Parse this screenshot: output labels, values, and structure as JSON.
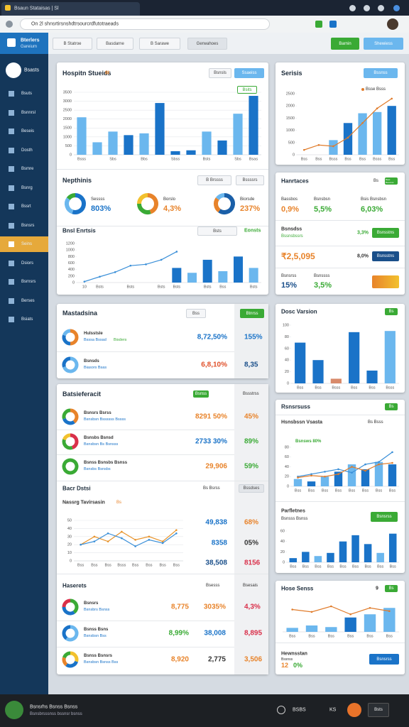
{
  "browser": {
    "tab": "Bsaun Stataisas | Sl",
    "url": "On 2l shnsrtirsnshdtrsourcrdfutotraeads"
  },
  "header": {
    "brand": "Bterlers",
    "brand_sub": "Gareium",
    "nav": [
      "B Statroe",
      "Basdarne",
      "B Sarawe",
      "Gerwahoes"
    ],
    "actions": [
      "Barnin",
      "Shewiess"
    ]
  },
  "sidebar": {
    "profile": "Bsasts",
    "items": [
      "Bsuts",
      "Bsnnrsl",
      "Beseis",
      "Dosth",
      "Bsmre",
      "Bsnrg",
      "Bssrt",
      "Bsnsrs",
      "Seins",
      "Dsiors",
      "Bsrnsrs",
      "Berses",
      "Bsiats"
    ],
    "active": 8
  },
  "hospital": {
    "title": "Hospitn Stueids",
    "badge": "8I",
    "tabs": [
      "Bsnsls",
      "Ssaeiss"
    ],
    "tag": "Bsits",
    "chart": {
      "type": "bar",
      "grid": true,
      "categories": [
        "Bsss",
        null,
        "Sbs",
        null,
        "Bbs",
        null,
        "Sbss",
        null,
        "Bsts",
        null,
        "Sbs",
        "Bsas"
      ],
      "ylim": [
        0,
        3500
      ],
      "yticks": [
        0,
        500,
        1000,
        1500,
        2000,
        2500,
        3000,
        3500
      ],
      "series": [
        {
          "type": "bar",
          "values": [
            2100,
            700,
            1300,
            1100,
            1200,
            2900,
            200,
            250,
            1300,
            800,
            2300,
            3300
          ],
          "colors": [
            "#6bb7ee",
            "#6bb7ee",
            "#6bb7ee",
            "#1a73c8",
            "#6bb7ee",
            "#1a73c8",
            "#1a73c8",
            "#1a73c8",
            "#6bb7ee",
            "#1a73c8",
            "#6bb7ee",
            "#1a73c8"
          ]
        }
      ]
    }
  },
  "nephrines": {
    "title": "Nepthinis",
    "tabs": [
      "B Brssss",
      "Bssssrs"
    ],
    "items": [
      {
        "label": "Sessss",
        "value": "803%",
        "color": "#1a73c8",
        "segments": [
          55,
          30,
          15
        ],
        "colors": [
          "#1a73c8",
          "#6bb7ee",
          "#3aaa35"
        ]
      },
      {
        "label": "Borslo",
        "value": "4,3%",
        "color": "#e8832a",
        "segments": [
          45,
          30,
          25
        ],
        "colors": [
          "#e8832a",
          "#3aaa35",
          "#f2c12e"
        ]
      },
      {
        "label": "Biorsde",
        "value": "237%",
        "color": "#e8832a",
        "segments": [
          60,
          25,
          15
        ],
        "colors": [
          "#1a5fa8",
          "#e8832a",
          "#6bb7ee"
        ]
      }
    ]
  },
  "trends": {
    "title": "Bnsl Enrtsis",
    "tabs": [
      "Bsts",
      "Eonsts"
    ],
    "chart": {
      "type": "bar",
      "grid": false,
      "categories": [
        "10",
        "Bsts",
        null,
        "Bsts",
        null,
        "Bsts",
        "Bsts",
        null,
        "Bsts",
        "Bss",
        null,
        "Bsts"
      ],
      "ylim": [
        0,
        1200
      ],
      "yticks": [
        0,
        200,
        400,
        600,
        800,
        1000,
        1200
      ],
      "series": [
        {
          "type": "line",
          "color": "#3a8fd8",
          "values": [
            30,
            180,
            320,
            520,
            560,
            700,
            950,
            null,
            null,
            null,
            null,
            null
          ]
        },
        {
          "type": "bar",
          "values": [
            null,
            null,
            null,
            null,
            null,
            null,
            450,
            300,
            700,
            350,
            800,
            450
          ],
          "colors": [
            "#1a73c8",
            "#1a73c8",
            "#1a73c8",
            "#1a73c8",
            "#1a73c8",
            "#1a73c8",
            "#1a73c8",
            "#6bb7ee",
            "#1a73c8",
            "#6bb7ee",
            "#1a73c8",
            "#6bb7ee"
          ]
        }
      ]
    }
  },
  "master": {
    "title": "Mastadsina",
    "tabs": [
      "Bss",
      "Btnrss"
    ],
    "rows": [
      {
        "name": "Hulsstsle",
        "sub": "Bsssa Bssad",
        "tag": "Bisders",
        "value": "8,72,50%",
        "pct": "155%",
        "text_colors": [
          "#1a73c8",
          "#1a73c8"
        ],
        "segments": [
          50,
          30,
          20
        ],
        "colors": [
          "#e8832a",
          "#1a73c8",
          "#6bb7ee"
        ]
      },
      {
        "name": "Bsnsds",
        "sub": "Biasors Bsas",
        "value": "6,8,10%",
        "pct": "8,35",
        "text_colors": [
          "#e0502a",
          "#1a4f8a"
        ],
        "segments": [
          70,
          30
        ],
        "colors": [
          "#6bb7ee",
          "#1a73c8"
        ]
      }
    ]
  },
  "bursts": {
    "title": "Batsieferacit",
    "tabs": [
      "Bsnss",
      "Bssstrss"
    ],
    "rows": [
      {
        "name": "Bsnsrs Bsrss",
        "sub": "Bsnsbsn Bssssss Bssss",
        "value": "8291 50%",
        "pct": "45%",
        "text_colors": [
          "#e8832a",
          "#e8832a"
        ],
        "segments": [
          40,
          30,
          30
        ],
        "colors": [
          "#e8832a",
          "#1a73c8",
          "#3aaa35"
        ]
      },
      {
        "name": "Bsnsbs Bsnsd",
        "sub": "Bsnsbsn Bs Bsnsss",
        "value": "2733 30%",
        "pct": "89%",
        "text_colors": [
          "#1a73c8",
          "#3aaa35"
        ],
        "segments": [
          45,
          35,
          20
        ],
        "colors": [
          "#d9304a",
          "#3aaa35",
          "#f2c12e"
        ]
      },
      {
        "name": "Bsnss Bsnsbs Bsnss",
        "sub": "Bsnsbs Bsnsbs",
        "value": "29,906",
        "pct": "59%",
        "text_colors": [
          "#e8832a",
          "#3aaa35"
        ],
        "segments": [
          100
        ],
        "colors": [
          "#3aaa35"
        ]
      }
    ]
  },
  "bdata": {
    "title": "Bacr Dstsi",
    "tabs": [
      "Bs Bsrss",
      "Bssdses"
    ],
    "chart_title": "Nassrg Tavirsasin",
    "badge": "Bs",
    "chart": {
      "type": "line",
      "grid": true,
      "categories": [
        "Bss",
        "Bss",
        "Bss",
        "Bsss",
        "Bss",
        "Bss",
        "Bss",
        "Bss"
      ],
      "ylim": [
        0,
        50
      ],
      "yticks": [
        0,
        10,
        20,
        30,
        40,
        50
      ],
      "series": [
        {
          "type": "line",
          "color": "#e8932a",
          "values": [
            20,
            30,
            24,
            36,
            26,
            30,
            24,
            38
          ]
        },
        {
          "type": "line",
          "color": "#3a8fd8",
          "values": [
            20,
            24,
            34,
            28,
            18,
            26,
            22,
            34
          ]
        }
      ]
    },
    "rows": [
      {
        "value": "49,838",
        "pct": "68%",
        "text_colors": [
          "#1a73c8",
          "#e8832a"
        ]
      },
      {
        "value": "8358",
        "pct": "05%",
        "text_colors": [
          "#1a73c8",
          "#333333"
        ]
      },
      {
        "value": "38,508",
        "pct": "8156",
        "text_colors": [
          "#1a4f8a",
          "#d9304a"
        ]
      }
    ]
  },
  "haserets": {
    "title": "Haserets",
    "tabs": [
      "Bsesss",
      "Bsesais"
    ],
    "rows": [
      {
        "name": "Bsnsrs",
        "sub": "Bsnsbrs Bsnss",
        "value": "8,775",
        "value2": "3035%",
        "pct": "4,3%",
        "text_colors": [
          "#e8832a",
          "#e8832a",
          "#d9304a"
        ],
        "segments": [
          40,
          35,
          25
        ],
        "colors": [
          "#3aaa35",
          "#1a73c8",
          "#d9304a"
        ]
      },
      {
        "name": "Bsnss Bsns",
        "sub": "Bsnsbsn Bss",
        "value": "8,99%",
        "value2": "38,008",
        "pct": "8,895",
        "text_colors": [
          "#3aaa35",
          "#1a73c8",
          "#d9304a"
        ],
        "segments": [
          60,
          40
        ],
        "colors": [
          "#6bb7ee",
          "#1a73c8"
        ]
      },
      {
        "name": "Bsnss Bsnsrs",
        "sub": "Bsnsbsn Bsnss Bss",
        "value": "8,920",
        "value2": "2,775",
        "pct": "3,506",
        "text_colors": [
          "#e8832a",
          "#333333",
          "#e8832a"
        ],
        "segments": [
          30,
          30,
          20,
          20
        ],
        "colors": [
          "#f2c12e",
          "#1a73c8",
          "#e8832a",
          "#3aaa35"
        ]
      }
    ]
  },
  "series_card": {
    "title": "Serisis",
    "action": "Bssnss",
    "legend": "Bsse Bsss",
    "chart": {
      "type": "bar",
      "grid": false,
      "categories": [
        "Bss",
        "Bss",
        "Bsss",
        "Bss",
        "Bss",
        "Bsss",
        "Bss"
      ],
      "ylim": [
        0,
        2500
      ],
      "yticks": [
        0,
        500,
        1000,
        1500,
        2000,
        2500
      ],
      "series": [
        {
          "type": "bar",
          "values": [
            null,
            null,
            600,
            1300,
            1700,
            1750,
            2000
          ],
          "colors": [
            "#6bb7ee",
            "#6bb7ee",
            "#6bb7ee",
            "#1a73c8",
            "#6bb7ee",
            "#6bb7ee",
            "#1a73c8"
          ]
        },
        {
          "type": "line",
          "color": "#e07b2a",
          "values": [
            200,
            400,
            350,
            700,
            1300,
            1900,
            2300
          ]
        }
      ]
    }
  },
  "handraces": {
    "title": "Hanrtaces",
    "tabs": [
      "Bs",
      "Bsisl Bsosnss"
    ],
    "kpis": [
      {
        "label": "Bassbos",
        "value": "0,9%",
        "color": "#e8832a"
      },
      {
        "label": "Bsnsbsn",
        "value": "5,5%",
        "color": "#3aaa35"
      },
      {
        "label": "Bsis Bsnsbsn",
        "value": "6,03%",
        "color": "#3aaa35"
      }
    ],
    "rows": [
      {
        "label": "Bsnsdss",
        "sub": "Bssnsbssrs",
        "value": "3,3%",
        "action": "Bsnsstns"
      },
      {
        "value": "₹2,5,095",
        "pct": "8,0%",
        "action": "Bsnsstns"
      },
      {
        "label": "Bsnsrss",
        "value": "15%",
        "label2": "Bsnssss",
        "value2": "3,5%"
      }
    ]
  },
  "dosc": {
    "title": "Dosc Varsion",
    "tabs": [
      "Bs"
    ],
    "chart": {
      "type": "bar",
      "grid": false,
      "categories": [
        "Bss",
        "Bss",
        "Bsss",
        "Bss",
        "Bss",
        "Bsss"
      ],
      "ylim": [
        0,
        100
      ],
      "yticks": [
        0,
        20,
        40,
        60,
        80,
        100
      ],
      "series": [
        {
          "type": "bar",
          "values": [
            70,
            40,
            8,
            88,
            22,
            90
          ],
          "colors": [
            "#1a73c8",
            "#1a73c8",
            "#d88a6a",
            "#1a73c8",
            "#1a73c8",
            "#6bb7ee"
          ]
        }
      ]
    }
  },
  "phona": {
    "title": "Rsnsrsuss",
    "tabs": [
      "Bs"
    ],
    "sub_title": "Hsnsbssn Vsasta",
    "sub_tabs": "Bs Bsss",
    "chart_label": "Bsnsws 80%",
    "chart": {
      "type": "bar",
      "grid": false,
      "categories": [
        "Bss",
        "Bss",
        "Bss",
        "Bss",
        "Bss",
        "Bss",
        "Bss",
        "Bss"
      ],
      "ylim": [
        0,
        80
      ],
      "yticks": [
        0,
        20,
        40,
        60,
        80
      ],
      "series": [
        {
          "type": "bar",
          "values": [
            15,
            10,
            20,
            30,
            45,
            35,
            50,
            45
          ],
          "colors": [
            "#6bb7ee",
            "#1a73c8",
            "#6bb7ee",
            "#1a73c8",
            "#6bb7ee",
            "#1a73c8",
            "#6bb7ee",
            "#1a73c8"
          ]
        },
        {
          "type": "line",
          "color": "#3a8fd8",
          "values": [
            20,
            25,
            30,
            35,
            28,
            45,
            50,
            70
          ]
        },
        {
          "type": "line",
          "color": "#e07b2a",
          "values": [
            18,
            22,
            20,
            25,
            40,
            32,
            45,
            48
          ]
        }
      ]
    }
  },
  "parflet": {
    "title": "Parfletnes",
    "sub": "Bsnsss Bsnss",
    "action": "Bsnsrss",
    "chart": {
      "type": "bar",
      "grid": false,
      "categories": [
        "Bss",
        "Bss",
        "Bss",
        "Bss",
        "Bss",
        "Bss",
        "Bss",
        "Bss",
        "Bss"
      ],
      "ylim": [
        0,
        60
      ],
      "yticks": [
        0,
        20,
        40,
        60
      ],
      "series": [
        {
          "type": "bar",
          "values": [
            8,
            20,
            12,
            18,
            40,
            52,
            35,
            18,
            55
          ],
          "colors": [
            "#1a73c8",
            "#1a73c8",
            "#6bb7ee",
            "#1a73c8",
            "#1a73c8",
            "#1a73c8",
            "#1a73c8",
            "#6bb7ee",
            "#1a73c8"
          ]
        }
      ]
    }
  },
  "hose": {
    "title": "Hose Senss",
    "badge": "9",
    "tabs": [
      "Bs"
    ],
    "chart": {
      "type": "bar",
      "grid": false,
      "categories": [
        "Bss",
        "Bss",
        "Bss",
        "Bss",
        "Bss",
        "Bss"
      ],
      "ylim": [
        0,
        40
      ],
      "series": [
        {
          "type": "bar",
          "values": [
            5,
            8,
            6,
            18,
            22,
            30
          ],
          "colors": [
            "#6bb7ee",
            "#6bb7ee",
            "#6bb7ee",
            "#1a73c8",
            "#6bb7ee",
            "#6bb7ee"
          ]
        },
        {
          "type": "line",
          "color": "#e07b2a",
          "values": [
            28,
            25,
            32,
            22,
            30,
            26
          ]
        }
      ]
    },
    "footer_title": "Hewnsstan",
    "footer_sub": "Bssnss",
    "footer_value": "12",
    "footer_pct": "0%",
    "action": "Bsnsrss"
  },
  "taskbar": {
    "user": "Bsnsrhs Bsnss Bsnss",
    "sub": "Bsnsbrsssnss bssnsr bsnss",
    "items": [
      "BSBS",
      "KS",
      "Bsts"
    ]
  }
}
